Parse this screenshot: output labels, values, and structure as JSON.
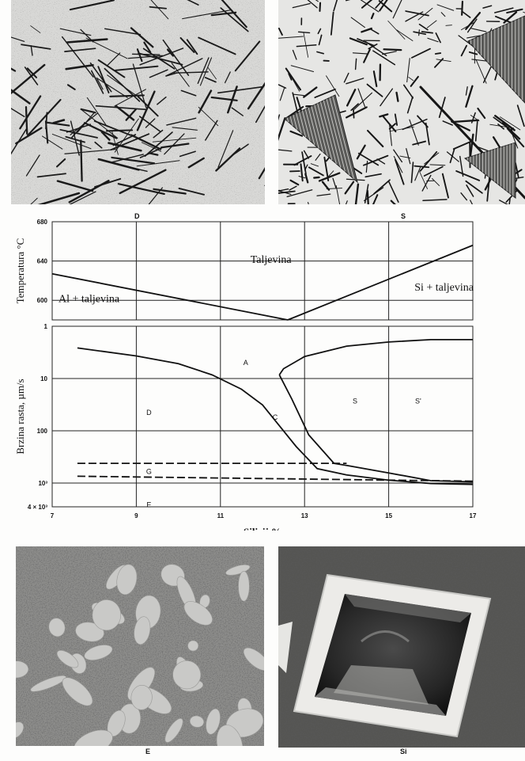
{
  "photos": {
    "top_left": {
      "label": "D"
    },
    "top_right": {
      "label": "S"
    },
    "bottom_left": {
      "label": "E"
    },
    "bottom_right": {
      "label": "Si"
    }
  },
  "chart_data": [
    {
      "type": "line",
      "title": "",
      "xlabel": "Silicij,%",
      "ylabel": "Temperatura °C",
      "xlim": [
        7,
        17
      ],
      "ylim": [
        580,
        680
      ],
      "y_ticks": [
        "680",
        "640",
        "600"
      ],
      "grid": true,
      "series": [
        {
          "x": [
            7,
            12.6
          ],
          "values": [
            627,
            580
          ]
        },
        {
          "x": [
            12.6,
            17
          ],
          "values": [
            580,
            656
          ]
        }
      ],
      "region_labels": [
        "Al + taljevina",
        "Taljevina",
        "Si + taljevina"
      ]
    },
    {
      "type": "line",
      "title": "",
      "xlabel": "Silicij,%",
      "ylabel": "Brzina rasta, µm/s",
      "x_ticks": [
        "7",
        "9",
        "11",
        "13",
        "15",
        "17"
      ],
      "y_ticks": [
        "1",
        "10",
        "100",
        "10³",
        "4 × 10³"
      ],
      "xlim": [
        7,
        17
      ],
      "log_scale_y": true,
      "y_inverted": true,
      "grid": true,
      "series": [
        {
          "x": [
            7.6,
            9,
            10,
            10.8,
            11.5,
            12,
            12.4,
            12.8,
            13.3,
            14,
            15,
            16,
            17
          ],
          "values": [
            2.6,
            3.7,
            5.2,
            8.5,
            16,
            32,
            80,
            200,
            530,
            700,
            880,
            1020,
            1060
          ]
        },
        {
          "x": [
            12.4,
            12.5,
            13,
            14,
            15,
            16,
            17
          ],
          "values": [
            8.5,
            6.5,
            3.8,
            2.4,
            2.0,
            1.8,
            1.8
          ]
        },
        {
          "x": [
            12.4,
            12.7,
            13.1,
            13.7,
            14,
            15,
            16,
            17
          ],
          "values": [
            8.5,
            25,
            120,
            420,
            460,
            640,
            900,
            950
          ]
        }
      ],
      "dashed_lines": [
        {
          "label": "G",
          "x": [
            7.6,
            14
          ],
          "values": [
            420,
            420
          ]
        },
        {
          "label": "G",
          "x": [
            7.6,
            17
          ],
          "values": [
            740,
            920
          ]
        }
      ],
      "zone_labels": [
        "A",
        "D",
        "C",
        "S",
        "S'",
        "G",
        "E"
      ]
    }
  ]
}
